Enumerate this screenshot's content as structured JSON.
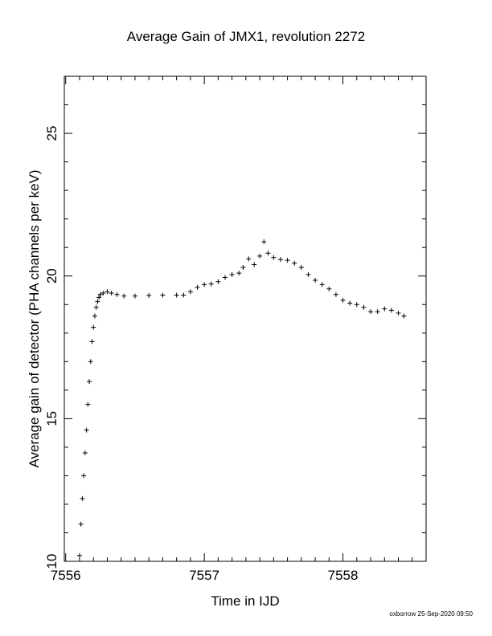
{
  "chart_data": {
    "type": "scatter",
    "title": "Average Gain of JMX1, revolution 2272",
    "xlabel": "Time in IJD",
    "ylabel": "Average gain of detector (PHA channels per keV)",
    "xlim": [
      7555.99,
      7558.6
    ],
    "ylim": [
      10,
      27
    ],
    "xticks": [
      7556,
      7557,
      7558
    ],
    "xtick_labels": [
      "7556",
      "7557",
      "7558"
    ],
    "yticks": [
      10,
      15,
      20,
      25
    ],
    "ytick_labels": [
      "10",
      "15",
      "20",
      "25"
    ],
    "marker": "plus",
    "grid": false,
    "series": [
      {
        "x": [
          7556.1,
          7556.11,
          7556.12,
          7556.13,
          7556.14,
          7556.15,
          7556.16,
          7556.17,
          7556.18,
          7556.19,
          7556.2,
          7556.21,
          7556.22,
          7556.23,
          7556.24,
          7556.25,
          7556.27,
          7556.3,
          7556.33,
          7556.37,
          7556.42,
          7556.5,
          7556.6,
          7556.7,
          7556.8,
          7556.85,
          7556.9,
          7556.95,
          7557.0,
          7557.05,
          7557.1,
          7557.15,
          7557.2,
          7557.25,
          7557.28,
          7557.32,
          7557.36,
          7557.4,
          7557.43,
          7557.46,
          7557.5,
          7557.55,
          7557.6,
          7557.65,
          7557.7,
          7557.75,
          7557.8,
          7557.85,
          7557.9,
          7557.95,
          7558.0,
          7558.05,
          7558.1,
          7558.15,
          7558.2,
          7558.25,
          7558.3,
          7558.35,
          7558.4,
          7558.44
        ],
        "y": [
          10.2,
          11.3,
          12.2,
          13.0,
          13.8,
          14.6,
          15.5,
          16.3,
          17.0,
          17.7,
          18.2,
          18.6,
          18.9,
          19.1,
          19.25,
          19.35,
          19.4,
          19.45,
          19.4,
          19.35,
          19.3,
          19.3,
          19.32,
          19.33,
          19.33,
          19.33,
          19.45,
          19.6,
          19.7,
          19.72,
          19.8,
          19.95,
          20.05,
          20.1,
          20.3,
          20.6,
          20.4,
          20.7,
          21.2,
          20.8,
          20.65,
          20.58,
          20.55,
          20.45,
          20.3,
          20.05,
          19.85,
          19.7,
          19.55,
          19.35,
          19.15,
          19.05,
          19.0,
          18.9,
          18.75,
          18.75,
          18.85,
          18.8,
          18.7,
          18.6
        ]
      }
    ]
  },
  "footer_note": "oxborrow 25-Sep-2020 09:50"
}
